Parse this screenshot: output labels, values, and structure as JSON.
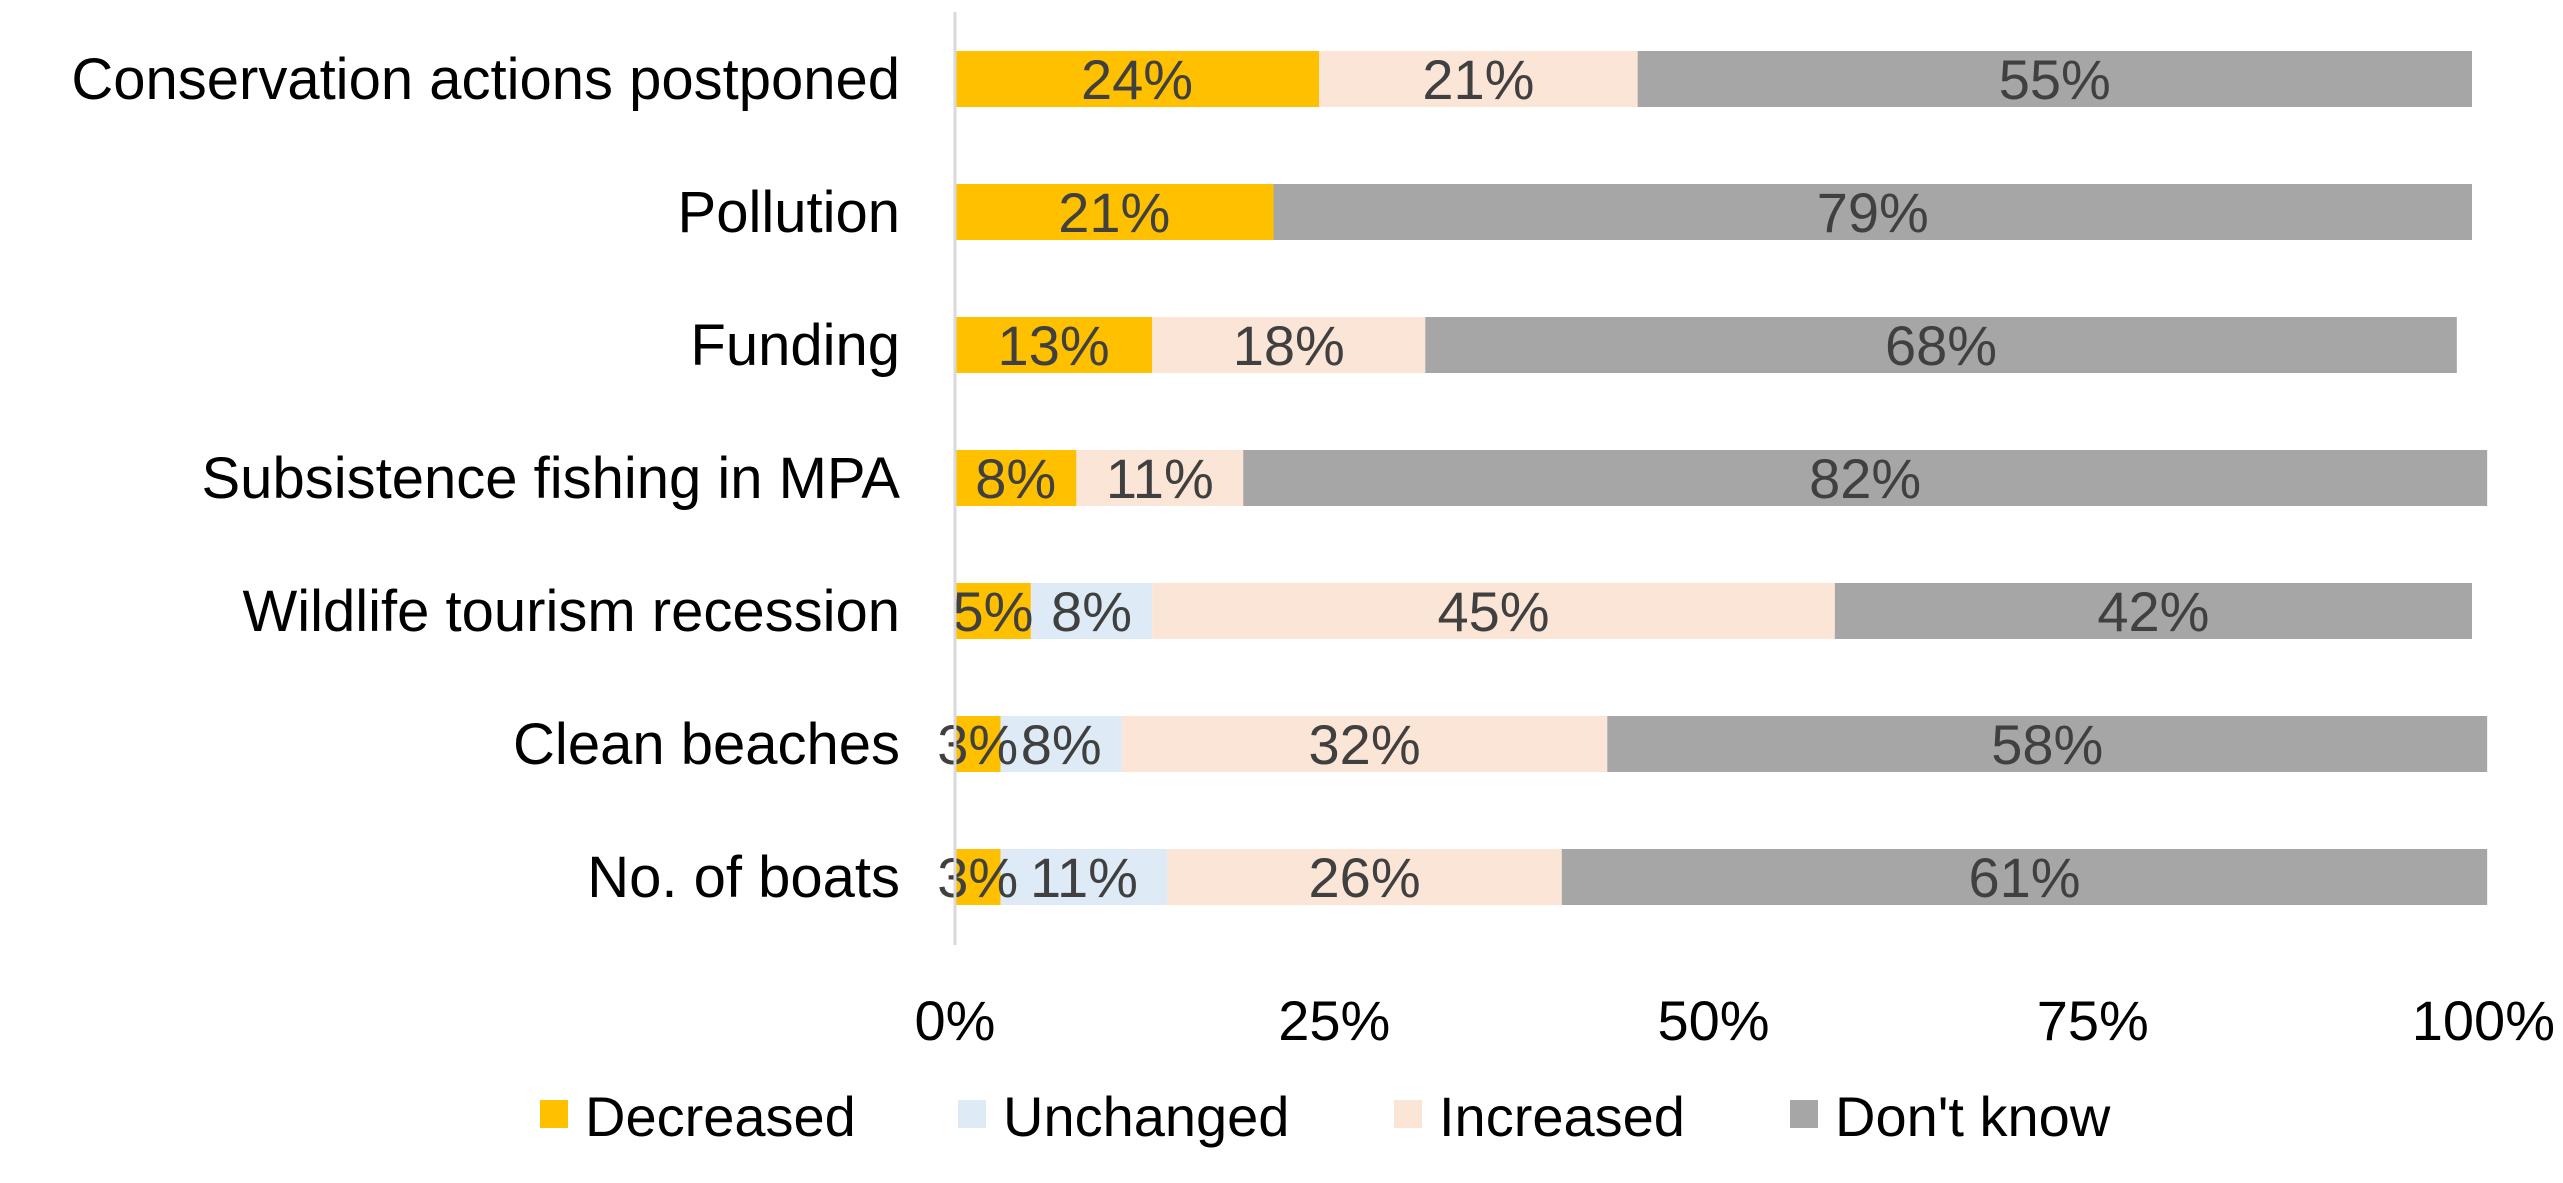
{
  "chart_data": {
    "type": "bar",
    "orientation": "horizontal",
    "stacked": true,
    "title": "",
    "xlabel": "",
    "ylabel": "",
    "xlim": [
      0,
      100
    ],
    "grid": false,
    "legend_position": "bottom",
    "x_ticks": [
      "0%",
      "25%",
      "50%",
      "75%",
      "100%"
    ],
    "categories": [
      "Conservation actions postponed",
      "Pollution",
      "Funding",
      "Subsistence fishing in MPA",
      "Wildlife tourism recession",
      "Clean beaches",
      "No. of boats"
    ],
    "series": [
      {
        "name": "Decreased",
        "color": "#FFC000",
        "values": [
          24,
          21,
          13,
          8,
          5,
          3,
          3
        ]
      },
      {
        "name": "Unchanged",
        "color": "#DEEBF7",
        "values": [
          0,
          0,
          0,
          0,
          8,
          8,
          11
        ]
      },
      {
        "name": "Increased",
        "color": "#FBE5D6",
        "values": [
          21,
          0,
          18,
          11,
          45,
          32,
          26
        ]
      },
      {
        "name": "Don't know",
        "color": "#A6A6A6",
        "values": [
          55,
          79,
          68,
          82,
          42,
          58,
          61
        ]
      }
    ],
    "label_suffix": "%"
  }
}
